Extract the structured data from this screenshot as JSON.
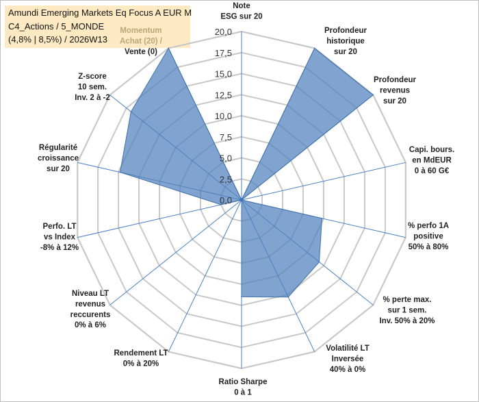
{
  "info_box": {
    "line1": "Amundi Emerging Markets Eq Focus A EUR M",
    "line2": "C4_Actions / 5_MONDE",
    "line3": "(4,8% | 8,5%) / 2026W13"
  },
  "colors": {
    "fill": "#4f81bd",
    "grid": "#c8c8c8",
    "spoke": "#4a7fc1",
    "info_bg": "#fde9c2"
  },
  "chart_data": {
    "type": "radar",
    "title": "",
    "r_min": 0,
    "r_max": 20,
    "ticks": [
      "0,0",
      "2,5",
      "5,0",
      "7,5",
      "10,0",
      "12,5",
      "15,0",
      "17,5",
      "20,0"
    ],
    "axes": [
      {
        "lines": [
          "Note",
          "ESG sur 20"
        ],
        "value": 0
      },
      {
        "lines": [
          "Profondeur",
          "historique",
          "sur 20"
        ],
        "value": 20
      },
      {
        "lines": [
          "Profondeur",
          "revenus",
          "sur 20"
        ],
        "value": 20
      },
      {
        "lines": [
          "Capi. bours.",
          "en MdEUR",
          "0 à 60 G€"
        ],
        "value": 0
      },
      {
        "lines": [
          "% perfo 1A",
          "positive",
          "50% à 80%"
        ],
        "value": 9.8
      },
      {
        "lines": [
          "% perte max.",
          "sur 1 sem.",
          "Inv. 50% à 20%"
        ],
        "value": 11.8
      },
      {
        "lines": [
          "Volatilité LT",
          "Inversée",
          "40% à 0%"
        ],
        "value": 12.8
      },
      {
        "lines": [
          "Ratio Sharpe",
          "0 à 1"
        ],
        "value": 11.5
      },
      {
        "lines": [
          "Rendement LT",
          "0% à 20%"
        ],
        "value": 0
      },
      {
        "lines": [
          "Niveau LT",
          "revenus",
          "reccurents",
          "0% à 6%"
        ],
        "value": 0
      },
      {
        "lines": [
          "Perfo. LT",
          "vs Index",
          "-8% à 12%"
        ],
        "value": 2.5
      },
      {
        "lines": [
          "Régularité",
          "croissance",
          "sur 20"
        ],
        "value": 14.8
      },
      {
        "lines": [
          "Z-score",
          "10 sem.",
          "Inv. 2 à -2"
        ],
        "value": 16.8
      },
      {
        "lines": [
          "Momentum",
          "Achat (20) /",
          "Vente (0)"
        ],
        "value": 20
      }
    ]
  }
}
